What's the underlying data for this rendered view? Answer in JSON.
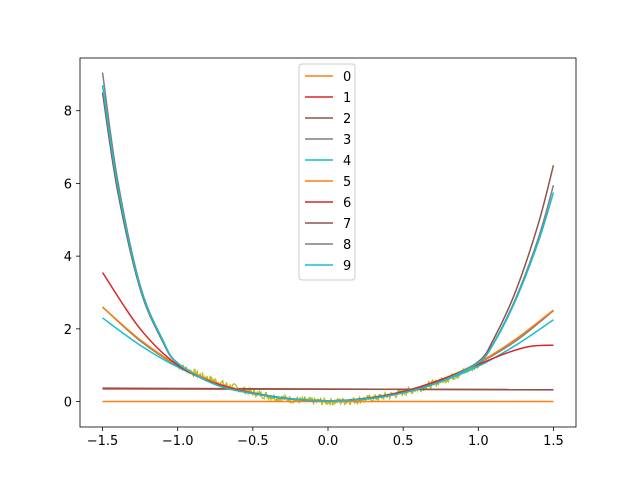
{
  "chart_data": {
    "type": "line",
    "title": "",
    "xlabel": "",
    "ylabel": "",
    "xlim": [
      -1.65,
      1.65
    ],
    "ylim": [
      -0.7,
      9.45
    ],
    "x_ticks": [
      -1.5,
      -1.0,
      -0.5,
      0.0,
      0.5,
      1.0,
      1.5
    ],
    "x_tick_labels": [
      "−1.5",
      "−1.0",
      "−0.5",
      "0.0",
      "0.5",
      "1.0",
      "1.5"
    ],
    "y_ticks": [
      0,
      2,
      4,
      6,
      8
    ],
    "y_tick_labels": [
      "0",
      "2",
      "4",
      "6",
      "8"
    ],
    "grid": false,
    "legend_position": "top-center",
    "noisy_data": {
      "color": "#bcbd22",
      "x_range": [
        -1.0,
        1.0
      ],
      "trend": "y = x^2 with small noise"
    },
    "series": [
      {
        "name": "0",
        "color": "#ff7f0e",
        "x": [
          -1.5,
          1.5
        ],
        "y": [
          0.0,
          0.0
        ]
      },
      {
        "name": "1",
        "color": "#d62728",
        "x": [
          -1.5,
          1.5
        ],
        "y": [
          0.35,
          0.33
        ]
      },
      {
        "name": "2",
        "color": "#8c564b",
        "x": [
          -1.5,
          1.5
        ],
        "y": [
          0.37,
          0.32
        ]
      },
      {
        "name": "3",
        "color": "#7f7f7f",
        "x": [
          -1.5,
          -1.25,
          -1.0,
          -0.75,
          -0.5,
          -0.25,
          0.0,
          0.25,
          0.5,
          0.75,
          1.0,
          1.25,
          1.5
        ],
        "y": [
          2.6,
          1.67,
          0.98,
          0.52,
          0.24,
          0.08,
          0.02,
          0.09,
          0.28,
          0.6,
          1.05,
          1.67,
          2.5
        ]
      },
      {
        "name": "4",
        "color": "#17becf",
        "x": [
          -1.5,
          -1.25,
          -1.0,
          -0.75,
          -0.5,
          -0.25,
          0.0,
          0.25,
          0.5,
          0.75,
          1.0,
          1.25,
          1.5
        ],
        "y": [
          2.3,
          1.55,
          0.95,
          0.52,
          0.24,
          0.08,
          0.02,
          0.08,
          0.25,
          0.55,
          0.97,
          1.55,
          2.25
        ]
      },
      {
        "name": "5",
        "color": "#ff7f0e",
        "x": [
          -1.5,
          -1.25,
          -1.0,
          -0.75,
          -0.5,
          -0.25,
          0.0,
          0.25,
          0.5,
          0.75,
          1.0,
          1.25,
          1.5
        ],
        "y": [
          2.6,
          1.7,
          1.0,
          0.53,
          0.24,
          0.07,
          0.02,
          0.08,
          0.27,
          0.6,
          1.07,
          1.72,
          2.52
        ]
      },
      {
        "name": "6",
        "color": "#d62728",
        "x": [
          -1.5,
          -1.25,
          -1.0,
          -0.75,
          -0.5,
          -0.25,
          0.0,
          0.25,
          0.5,
          0.75,
          1.0,
          1.2,
          1.35,
          1.5
        ],
        "y": [
          3.55,
          2.0,
          1.0,
          0.5,
          0.23,
          0.07,
          0.02,
          0.08,
          0.27,
          0.6,
          1.02,
          1.35,
          1.52,
          1.55
        ]
      },
      {
        "name": "7",
        "color": "#8c564b",
        "x": [
          -1.5,
          -1.4,
          -1.25,
          -1.1,
          -1.0,
          -0.75,
          -0.5,
          -0.25,
          0.0,
          0.25,
          0.5,
          0.75,
          1.0,
          1.1,
          1.25,
          1.4,
          1.5
        ],
        "y": [
          8.5,
          5.8,
          3.1,
          1.65,
          1.05,
          0.47,
          0.22,
          0.07,
          0.02,
          0.07,
          0.24,
          0.55,
          1.1,
          1.7,
          3.05,
          4.9,
          6.5
        ]
      },
      {
        "name": "8",
        "color": "#7f7f7f",
        "x": [
          -1.5,
          -1.4,
          -1.25,
          -1.1,
          -1.0,
          -0.75,
          -0.5,
          -0.25,
          0.0,
          0.25,
          0.5,
          0.75,
          1.0,
          1.1,
          1.25,
          1.4,
          1.5
        ],
        "y": [
          9.05,
          6.1,
          3.2,
          1.7,
          1.06,
          0.47,
          0.22,
          0.07,
          0.02,
          0.07,
          0.24,
          0.55,
          1.08,
          1.6,
          2.85,
          4.5,
          5.95
        ]
      },
      {
        "name": "9",
        "color": "#17becf",
        "x": [
          -1.5,
          -1.4,
          -1.25,
          -1.1,
          -1.0,
          -0.75,
          -0.5,
          -0.25,
          0.0,
          0.25,
          0.5,
          0.75,
          1.0,
          1.1,
          1.25,
          1.4,
          1.5
        ],
        "y": [
          8.7,
          5.95,
          3.15,
          1.68,
          1.05,
          0.47,
          0.22,
          0.07,
          0.02,
          0.07,
          0.24,
          0.55,
          1.07,
          1.58,
          2.8,
          4.4,
          5.75
        ]
      }
    ]
  }
}
